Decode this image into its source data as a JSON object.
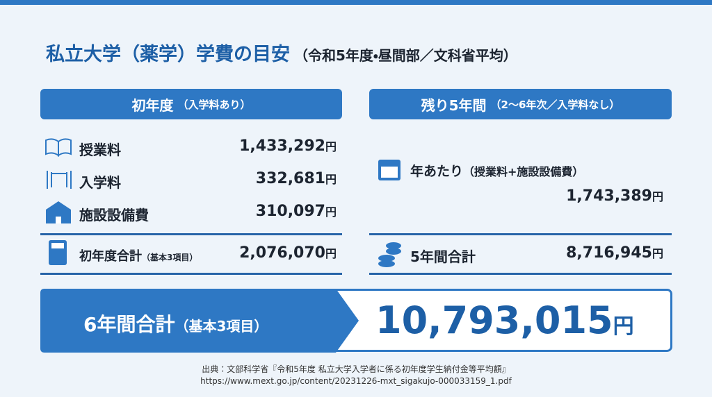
{
  "header": {
    "title": "私立大学（薬学）学費の目安",
    "subtitle": "（令和5年度・昼間部／文科省平均）"
  },
  "unit": "円",
  "first_year": {
    "heading": "初年度",
    "heading_note": "（入学料あり）",
    "items": [
      {
        "label": "授業料",
        "amount": "1,433,292"
      },
      {
        "label": "入学料",
        "amount": "332,681"
      },
      {
        "label": "施設設備費",
        "amount": "310,097"
      }
    ],
    "subtotal": {
      "label": "初年度合計",
      "note": "（基本3項目）",
      "amount": "2,076,070"
    }
  },
  "remaining": {
    "heading": "残り5年間",
    "heading_note": "（2〜6年次／入学料なし）",
    "per_year": {
      "label": "年あたり",
      "note": "（授業料+施設設備費）",
      "amount": "1,743,389"
    },
    "subtotal": {
      "label": "5年間合計",
      "amount": "8,716,945"
    }
  },
  "total": {
    "label": "6年間合計",
    "note": "（基本3項目）",
    "amount": "10,793,015"
  },
  "source": {
    "line1": "出典：文部科学省『令和5年度 私立大学入学者に係る初年度学生納付金等平均額』",
    "line2": "https://www.mext.go.jp/content/20231226-mxt_sigakujo-000033159_1.pdf"
  }
}
